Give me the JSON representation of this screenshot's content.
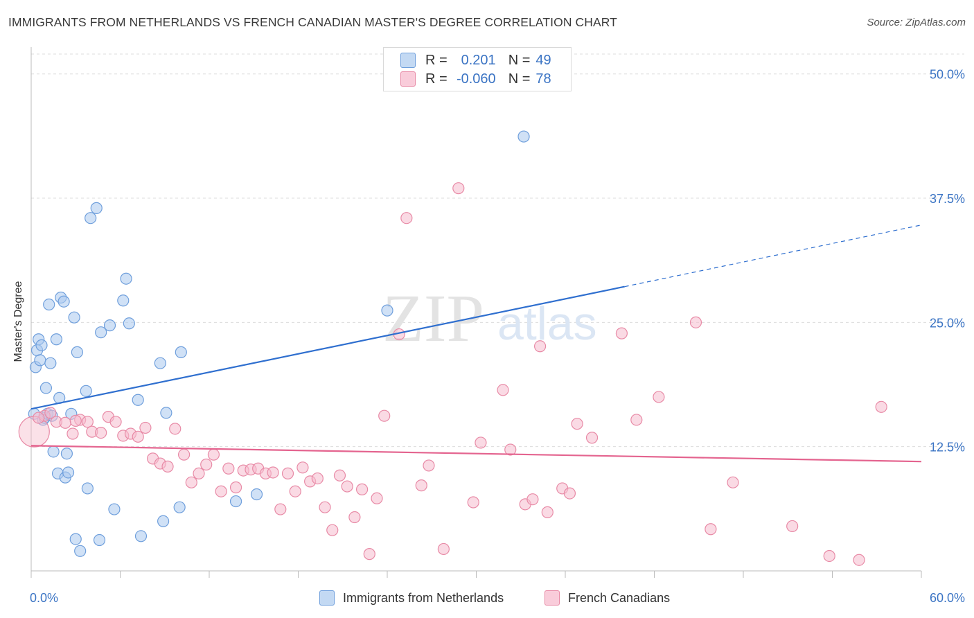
{
  "header": {
    "title": "IMMIGRANTS FROM NETHERLANDS VS FRENCH CANADIAN MASTER'S DEGREE CORRELATION CHART",
    "source": "Source: ZipAtlas.com"
  },
  "colors": {
    "blue_fill": "#aac9ee",
    "blue_stroke": "#6f9fdc",
    "blue_line": "#2f6fcf",
    "pink_fill": "#f6bccd",
    "pink_stroke": "#e88aa6",
    "pink_line": "#e4648f",
    "axis_text": "#3b74c4",
    "grid": "#dcdcdc"
  },
  "legend_top": {
    "rows": [
      {
        "r_label": "R = ",
        "r_value": "0.201",
        "n_label": "N = ",
        "n_value": "49"
      },
      {
        "r_label": "R = ",
        "r_value": "-0.060",
        "n_label": "N = ",
        "n_value": "78"
      }
    ]
  },
  "watermark": {
    "part1": "ZIP",
    "part2": "atlas"
  },
  "chart_data": {
    "type": "scatter",
    "title": "IMMIGRANTS FROM NETHERLANDS VS FRENCH CANADIAN MASTER'S DEGREE CORRELATION CHART",
    "xlabel": "",
    "ylabel": "Master's Degree",
    "xlim": [
      0,
      60
    ],
    "ylim": [
      0,
      52
    ],
    "x_tick_labels": [
      "0.0%",
      "60.0%"
    ],
    "y_ticks": [
      12.5,
      25.0,
      37.5,
      50.0
    ],
    "y_tick_labels": [
      "12.5%",
      "25.0%",
      "37.5%",
      "50.0%"
    ],
    "grid": true,
    "legend_position": "bottom",
    "series": [
      {
        "name": "Immigrants from Netherlands",
        "r": 0.201,
        "n": 49,
        "trend": {
          "x0": 0,
          "y0": 16.3,
          "x1": 40,
          "y1": 28.6,
          "dashed_to_x": 60,
          "dashed_to_y": 34.8
        },
        "points": [
          [
            0.3,
            20.5
          ],
          [
            0.4,
            22.2
          ],
          [
            0.5,
            23.3
          ],
          [
            0.6,
            21.2
          ],
          [
            0.7,
            22.7
          ],
          [
            0.8,
            15.2
          ],
          [
            0.9,
            15.4
          ],
          [
            1.0,
            18.4
          ],
          [
            1.1,
            15.8
          ],
          [
            1.2,
            26.8
          ],
          [
            1.3,
            20.9
          ],
          [
            1.5,
            12.0
          ],
          [
            1.7,
            23.3
          ],
          [
            1.8,
            9.8
          ],
          [
            1.9,
            17.4
          ],
          [
            2.0,
            27.5
          ],
          [
            2.2,
            27.1
          ],
          [
            2.3,
            9.4
          ],
          [
            2.4,
            11.8
          ],
          [
            2.5,
            9.9
          ],
          [
            2.7,
            15.8
          ],
          [
            2.9,
            25.5
          ],
          [
            3.0,
            3.2
          ],
          [
            3.1,
            22.0
          ],
          [
            3.3,
            2.0
          ],
          [
            3.7,
            18.1
          ],
          [
            3.8,
            8.3
          ],
          [
            4.0,
            35.5
          ],
          [
            4.4,
            36.5
          ],
          [
            4.6,
            3.1
          ],
          [
            4.7,
            24.0
          ],
          [
            5.3,
            24.7
          ],
          [
            5.6,
            6.2
          ],
          [
            6.2,
            27.2
          ],
          [
            6.4,
            29.4
          ],
          [
            6.6,
            24.9
          ],
          [
            7.2,
            17.2
          ],
          [
            7.4,
            3.5
          ],
          [
            8.7,
            20.9
          ],
          [
            8.9,
            5.0
          ],
          [
            9.1,
            15.9
          ],
          [
            10.0,
            6.4
          ],
          [
            10.1,
            22.0
          ],
          [
            13.8,
            7.0
          ],
          [
            15.2,
            7.7
          ],
          [
            24.0,
            26.2
          ],
          [
            33.2,
            43.7
          ],
          [
            0.2,
            15.8
          ],
          [
            1.4,
            15.6
          ]
        ]
      },
      {
        "name": "French Canadians",
        "r": -0.06,
        "n": 78,
        "trend": {
          "x0": 0,
          "y0": 12.6,
          "x1": 60,
          "y1": 11.0
        },
        "points": [
          [
            0.2,
            14.0
          ],
          [
            0.9,
            15.6
          ],
          [
            1.3,
            15.9
          ],
          [
            1.7,
            15.0
          ],
          [
            2.3,
            14.9
          ],
          [
            2.8,
            13.8
          ],
          [
            3.3,
            15.2
          ],
          [
            3.8,
            15.0
          ],
          [
            4.1,
            14.0
          ],
          [
            4.7,
            13.9
          ],
          [
            5.2,
            15.5
          ],
          [
            5.7,
            15.0
          ],
          [
            6.2,
            13.6
          ],
          [
            6.7,
            13.8
          ],
          [
            7.2,
            13.5
          ],
          [
            7.7,
            14.4
          ],
          [
            8.2,
            11.3
          ],
          [
            8.7,
            10.8
          ],
          [
            9.2,
            10.5
          ],
          [
            9.7,
            14.3
          ],
          [
            10.3,
            11.7
          ],
          [
            10.8,
            8.9
          ],
          [
            11.3,
            9.8
          ],
          [
            11.8,
            10.7
          ],
          [
            12.3,
            11.7
          ],
          [
            12.8,
            8.0
          ],
          [
            13.3,
            10.3
          ],
          [
            13.8,
            8.4
          ],
          [
            14.3,
            10.1
          ],
          [
            14.8,
            10.2
          ],
          [
            15.3,
            10.3
          ],
          [
            15.8,
            9.8
          ],
          [
            16.3,
            9.9
          ],
          [
            16.8,
            6.2
          ],
          [
            17.3,
            9.8
          ],
          [
            17.8,
            8.0
          ],
          [
            18.3,
            10.4
          ],
          [
            18.8,
            9.0
          ],
          [
            19.3,
            9.3
          ],
          [
            19.8,
            6.4
          ],
          [
            20.3,
            4.1
          ],
          [
            20.8,
            9.6
          ],
          [
            21.3,
            8.5
          ],
          [
            21.8,
            5.4
          ],
          [
            22.3,
            8.2
          ],
          [
            22.8,
            1.7
          ],
          [
            23.3,
            7.3
          ],
          [
            23.8,
            15.6
          ],
          [
            24.8,
            23.8
          ],
          [
            25.3,
            35.5
          ],
          [
            26.3,
            8.6
          ],
          [
            26.8,
            10.6
          ],
          [
            27.8,
            2.2
          ],
          [
            28.8,
            38.5
          ],
          [
            29.8,
            6.9
          ],
          [
            30.3,
            12.9
          ],
          [
            31.8,
            18.2
          ],
          [
            32.3,
            12.2
          ],
          [
            33.3,
            6.7
          ],
          [
            33.8,
            7.2
          ],
          [
            34.3,
            22.6
          ],
          [
            34.8,
            5.9
          ],
          [
            35.8,
            8.3
          ],
          [
            36.3,
            7.8
          ],
          [
            36.8,
            14.8
          ],
          [
            37.8,
            13.4
          ],
          [
            39.8,
            23.9
          ],
          [
            40.8,
            15.2
          ],
          [
            42.3,
            17.5
          ],
          [
            44.8,
            25.0
          ],
          [
            45.8,
            4.2
          ],
          [
            47.3,
            8.9
          ],
          [
            51.3,
            4.5
          ],
          [
            53.8,
            1.5
          ],
          [
            55.8,
            1.1
          ],
          [
            57.3,
            16.5
          ],
          [
            0.5,
            15.4
          ],
          [
            3.0,
            15.1
          ]
        ]
      }
    ]
  },
  "legend_bottom": {
    "items": [
      {
        "label": "Immigrants from Netherlands"
      },
      {
        "label": "French Canadians"
      }
    ]
  }
}
